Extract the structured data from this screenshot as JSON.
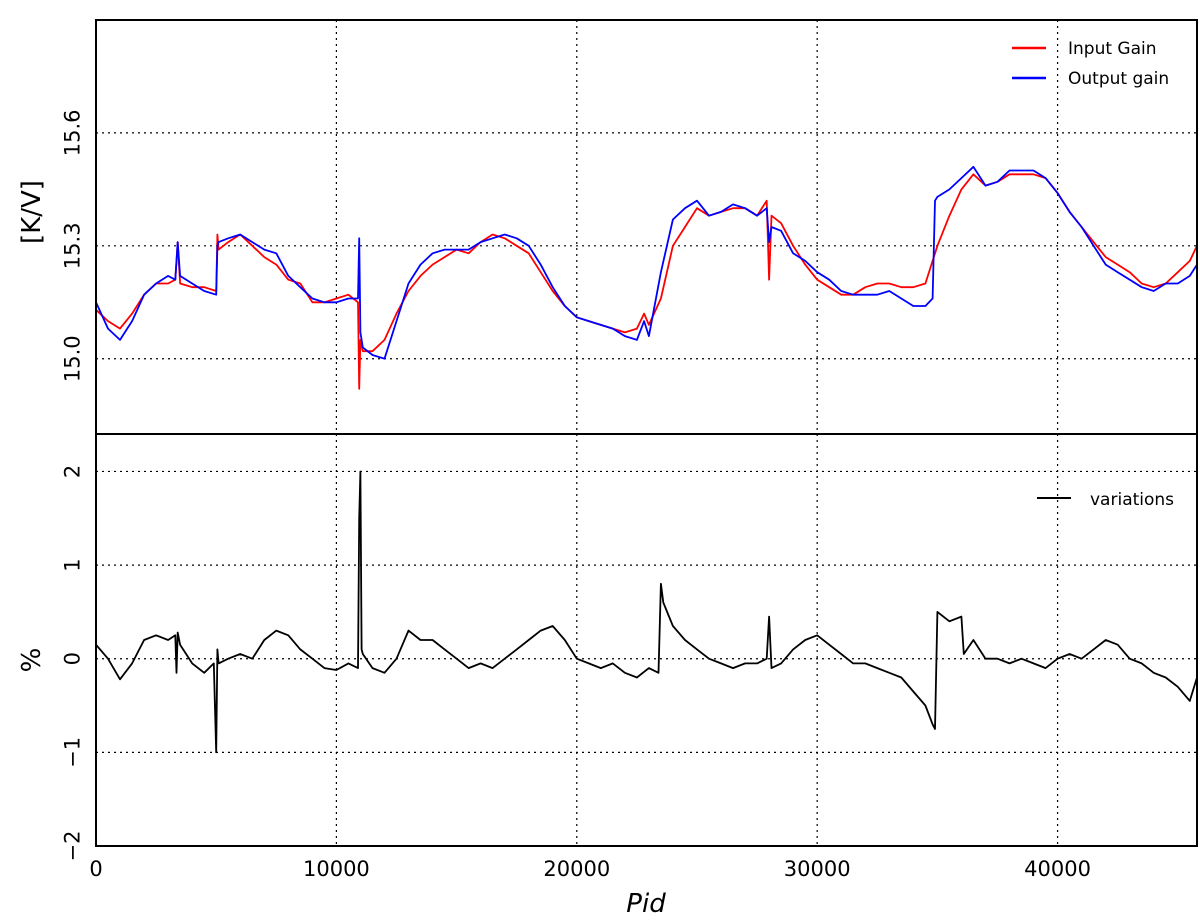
{
  "chart_data": [
    {
      "type": "line",
      "panel": "top",
      "title": "",
      "ylabel": "[K/V]",
      "xlim": [
        0,
        45800
      ],
      "ylim": [
        14.8,
        15.9
      ],
      "yticks": [
        15.0,
        15.3,
        15.6
      ],
      "ytick_labels": [
        "15.0",
        "15.3",
        "15.6"
      ],
      "grid": true,
      "legend_position": "top-right",
      "series": [
        {
          "name": "Input Gain",
          "color": "#ff0000",
          "x": [
            0,
            500,
            1000,
            1500,
            2000,
            2500,
            3000,
            3300,
            3400,
            3500,
            4000,
            4500,
            5000,
            5050,
            5100,
            5500,
            6000,
            6500,
            7000,
            7500,
            8000,
            8500,
            9000,
            9500,
            10000,
            10500,
            10900,
            10950,
            11000,
            11100,
            11500,
            12000,
            12500,
            13000,
            13500,
            14000,
            14500,
            15000,
            15500,
            16000,
            16500,
            17000,
            17500,
            18000,
            18500,
            19000,
            19500,
            20000,
            20500,
            21000,
            21500,
            22000,
            22500,
            22800,
            23000,
            23500,
            24000,
            24500,
            25000,
            25500,
            26000,
            26500,
            27000,
            27500,
            27900,
            28000,
            28100,
            28500,
            29000,
            29500,
            30000,
            30500,
            31000,
            31500,
            32000,
            32500,
            33000,
            33500,
            34000,
            34500,
            35000,
            35500,
            36000,
            36500,
            37000,
            37500,
            38000,
            38500,
            39000,
            39500,
            40000,
            40500,
            41000,
            41500,
            42000,
            42500,
            43000,
            43500,
            44000,
            44500,
            45000,
            45500,
            45800
          ],
          "values": [
            15.13,
            15.1,
            15.08,
            15.12,
            15.17,
            15.2,
            15.2,
            15.21,
            15.31,
            15.2,
            15.19,
            15.19,
            15.18,
            15.33,
            15.29,
            15.31,
            15.33,
            15.3,
            15.27,
            15.25,
            15.21,
            15.2,
            15.15,
            15.15,
            15.16,
            15.17,
            15.15,
            14.92,
            15.05,
            15.02,
            15.02,
            15.05,
            15.12,
            15.18,
            15.22,
            15.25,
            15.27,
            15.29,
            15.28,
            15.31,
            15.33,
            15.32,
            15.3,
            15.28,
            15.23,
            15.18,
            15.14,
            15.11,
            15.1,
            15.09,
            15.08,
            15.07,
            15.08,
            15.12,
            15.09,
            15.16,
            15.3,
            15.35,
            15.4,
            15.38,
            15.39,
            15.4,
            15.4,
            15.38,
            15.42,
            15.21,
            15.38,
            15.36,
            15.3,
            15.25,
            15.21,
            15.19,
            15.17,
            15.17,
            15.19,
            15.2,
            15.2,
            15.19,
            15.19,
            15.2,
            15.3,
            15.38,
            15.45,
            15.49,
            15.46,
            15.47,
            15.49,
            15.49,
            15.49,
            15.48,
            15.44,
            15.39,
            15.35,
            15.31,
            15.27,
            15.25,
            15.23,
            15.2,
            15.19,
            15.2,
            15.23,
            15.26,
            15.3
          ]
        },
        {
          "name": "Output gain",
          "color": "#0000ff",
          "x": [
            0,
            500,
            1000,
            1500,
            2000,
            2500,
            3000,
            3300,
            3400,
            3500,
            4000,
            4500,
            5000,
            5050,
            5100,
            5500,
            6000,
            6500,
            7000,
            7500,
            8000,
            8500,
            9000,
            9500,
            10000,
            10500,
            10900,
            10950,
            11000,
            11100,
            11500,
            12000,
            12500,
            13000,
            13500,
            14000,
            14500,
            15000,
            15500,
            16000,
            16500,
            17000,
            17500,
            18000,
            18500,
            19000,
            19500,
            20000,
            20500,
            21000,
            21500,
            22000,
            22500,
            22800,
            23000,
            23500,
            24000,
            24500,
            25000,
            25500,
            26000,
            26500,
            27000,
            27500,
            27900,
            28000,
            28100,
            28500,
            29000,
            29500,
            30000,
            30500,
            31000,
            31500,
            32000,
            32500,
            33000,
            33500,
            34000,
            34500,
            34800,
            34900,
            35000,
            35500,
            36000,
            36500,
            37000,
            37500,
            38000,
            38500,
            39000,
            39500,
            40000,
            40500,
            41000,
            41500,
            42000,
            42500,
            43000,
            43500,
            44000,
            44500,
            45000,
            45500,
            45800
          ],
          "values": [
            15.15,
            15.08,
            15.05,
            15.1,
            15.17,
            15.2,
            15.22,
            15.21,
            15.31,
            15.22,
            15.2,
            15.18,
            15.17,
            15.3,
            15.31,
            15.32,
            15.33,
            15.31,
            15.29,
            15.28,
            15.22,
            15.19,
            15.16,
            15.15,
            15.15,
            15.16,
            15.16,
            15.32,
            15.07,
            15.03,
            15.01,
            15.0,
            15.1,
            15.2,
            15.25,
            15.28,
            15.29,
            15.29,
            15.29,
            15.31,
            15.32,
            15.33,
            15.32,
            15.3,
            15.25,
            15.19,
            15.14,
            15.11,
            15.1,
            15.09,
            15.08,
            15.06,
            15.05,
            15.1,
            15.06,
            15.23,
            15.37,
            15.4,
            15.42,
            15.38,
            15.39,
            15.41,
            15.4,
            15.38,
            15.4,
            15.31,
            15.35,
            15.34,
            15.28,
            15.26,
            15.23,
            15.21,
            15.18,
            15.17,
            15.17,
            15.17,
            15.18,
            15.16,
            15.14,
            15.14,
            15.16,
            15.42,
            15.43,
            15.45,
            15.48,
            15.51,
            15.46,
            15.47,
            15.5,
            15.5,
            15.5,
            15.48,
            15.44,
            15.39,
            15.35,
            15.3,
            15.25,
            15.23,
            15.21,
            15.19,
            15.18,
            15.2,
            15.2,
            15.22,
            15.25
          ]
        }
      ]
    },
    {
      "type": "line",
      "panel": "bottom",
      "title": "",
      "xlabel": "Pid",
      "ylabel": "%",
      "xlim": [
        0,
        45800
      ],
      "ylim": [
        -2,
        2.4
      ],
      "xticks": [
        0,
        10000,
        20000,
        30000,
        40000
      ],
      "xtick_labels": [
        "0",
        "10000",
        "20000",
        "30000",
        "40000"
      ],
      "yticks": [
        -2,
        -1,
        0,
        1,
        2
      ],
      "ytick_labels": [
        "−2",
        "−1",
        "0",
        "1",
        "2"
      ],
      "grid": true,
      "legend_position": "top-right",
      "series": [
        {
          "name": "variations",
          "color": "#000000",
          "x": [
            0,
            500,
            1000,
            1500,
            2000,
            2500,
            3000,
            3300,
            3350,
            3400,
            3500,
            4000,
            4500,
            4900,
            5000,
            5050,
            5100,
            5500,
            6000,
            6500,
            7000,
            7500,
            8000,
            8500,
            9000,
            9500,
            10000,
            10500,
            10900,
            10950,
            11000,
            11050,
            11100,
            11500,
            12000,
            12500,
            13000,
            13500,
            14000,
            14500,
            15000,
            15500,
            16000,
            16500,
            17000,
            17500,
            18000,
            18500,
            19000,
            19500,
            20000,
            20500,
            21000,
            21500,
            22000,
            22500,
            23000,
            23400,
            23500,
            23600,
            24000,
            24500,
            25000,
            25500,
            26000,
            26500,
            27000,
            27500,
            27900,
            28000,
            28100,
            28500,
            29000,
            29500,
            30000,
            30500,
            31000,
            31500,
            32000,
            32500,
            33000,
            33500,
            34000,
            34500,
            34800,
            34900,
            35000,
            35500,
            36000,
            36100,
            36500,
            37000,
            37500,
            38000,
            38500,
            39000,
            39500,
            40000,
            40500,
            41000,
            41500,
            42000,
            42500,
            43000,
            43500,
            44000,
            44500,
            45000,
            45500,
            45800
          ],
          "values": [
            0.15,
            0.0,
            -0.22,
            -0.05,
            0.2,
            0.25,
            0.2,
            0.25,
            -0.15,
            0.28,
            0.15,
            -0.05,
            -0.15,
            -0.05,
            -1.0,
            0.1,
            -0.05,
            0.0,
            0.05,
            0.0,
            0.2,
            0.3,
            0.25,
            0.1,
            0.0,
            -0.1,
            -0.12,
            -0.05,
            -0.1,
            1.5,
            2.0,
            0.1,
            0.05,
            -0.1,
            -0.15,
            0.0,
            0.3,
            0.2,
            0.2,
            0.1,
            0.0,
            -0.1,
            -0.05,
            -0.1,
            0.0,
            0.1,
            0.2,
            0.3,
            0.35,
            0.2,
            0.0,
            -0.05,
            -0.1,
            -0.05,
            -0.15,
            -0.2,
            -0.1,
            -0.15,
            0.8,
            0.6,
            0.35,
            0.2,
            0.1,
            0.0,
            -0.05,
            -0.1,
            -0.05,
            -0.05,
            0.0,
            0.45,
            -0.1,
            -0.05,
            0.1,
            0.2,
            0.25,
            0.15,
            0.05,
            -0.05,
            -0.05,
            -0.1,
            -0.15,
            -0.2,
            -0.35,
            -0.5,
            -0.7,
            -0.75,
            0.5,
            0.4,
            0.45,
            0.05,
            0.2,
            0.0,
            0.0,
            -0.05,
            0.0,
            -0.05,
            -0.1,
            0.0,
            0.05,
            0.0,
            0.1,
            0.2,
            0.15,
            0.0,
            -0.05,
            -0.15,
            -0.2,
            -0.3,
            -0.45,
            -0.2
          ]
        }
      ]
    }
  ]
}
